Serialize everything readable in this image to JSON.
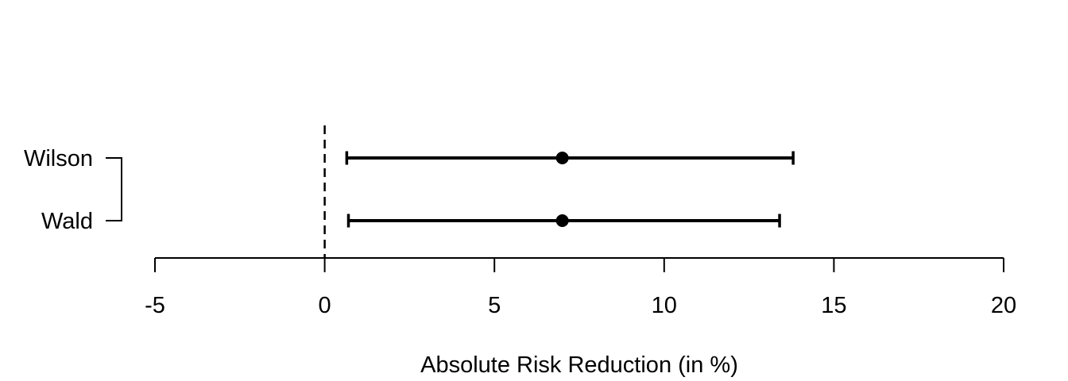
{
  "chart_data": {
    "type": "forest",
    "title": "",
    "xlabel": "Absolute Risk Reduction (in %)",
    "xlim": [
      -5,
      20
    ],
    "xticks": [
      -5,
      0,
      5,
      10,
      15,
      20
    ],
    "xticklabels": [
      "-5",
      "0",
      "5",
      "10",
      "15",
      "20"
    ],
    "reference_line": {
      "x": 0,
      "style": "dashed"
    },
    "rows": [
      {
        "label": "Wilson",
        "estimate": 7.0,
        "ci_lower": 0.65,
        "ci_upper": 13.8
      },
      {
        "label": "Wald",
        "estimate": 7.0,
        "ci_lower": 0.7,
        "ci_upper": 13.4
      }
    ],
    "layout_hints": {
      "grid": false,
      "legend": "none",
      "x_axis_side": "bottom",
      "y_axis_style": "bracket-with-ticks",
      "point_marker": "filled-circle",
      "interval_cap_style": "flat-ends"
    },
    "colors": {
      "foreground": "#000000",
      "background": "#ffffff"
    }
  }
}
